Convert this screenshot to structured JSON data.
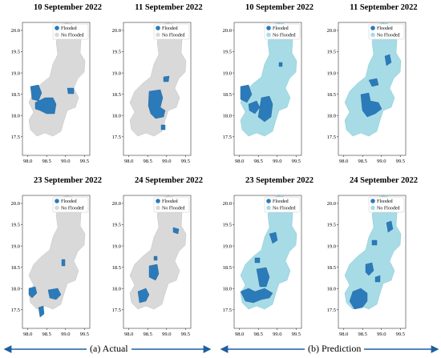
{
  "colors": {
    "flooded": "#2b7bba",
    "no_flooded_actual": "#d9d9d9",
    "no_flooded_prediction": "#a7dbe6",
    "arrow": "#1f5fa0"
  },
  "axes": {
    "xticks": [
      "98.0",
      "98.5",
      "99.0",
      "99.5"
    ],
    "yticks": [
      "20.0",
      "19.5",
      "19.0",
      "18.5",
      "18.0",
      "17.5"
    ]
  },
  "legend": {
    "flooded": "Flooded",
    "no_flooded": "No  Flooded"
  },
  "captions": {
    "actual": "(a) Actual",
    "prediction": "(b) Prediction"
  },
  "panels": [
    {
      "title": "10 September 2022",
      "type": "actual",
      "scene": "p0"
    },
    {
      "title": "11 September 2022",
      "type": "actual",
      "scene": "p1"
    },
    {
      "title": "10 September 2022",
      "type": "prediction",
      "scene": "p2"
    },
    {
      "title": "11 September 2022",
      "type": "prediction",
      "scene": "p3"
    },
    {
      "title": "23 September 2022",
      "type": "actual",
      "scene": "p4"
    },
    {
      "title": "24 September 2022",
      "type": "actual",
      "scene": "p5"
    },
    {
      "title": "23 September 2022",
      "type": "prediction",
      "scene": "p6"
    },
    {
      "title": "24 September 2022",
      "type": "prediction",
      "scene": "p7"
    }
  ]
}
